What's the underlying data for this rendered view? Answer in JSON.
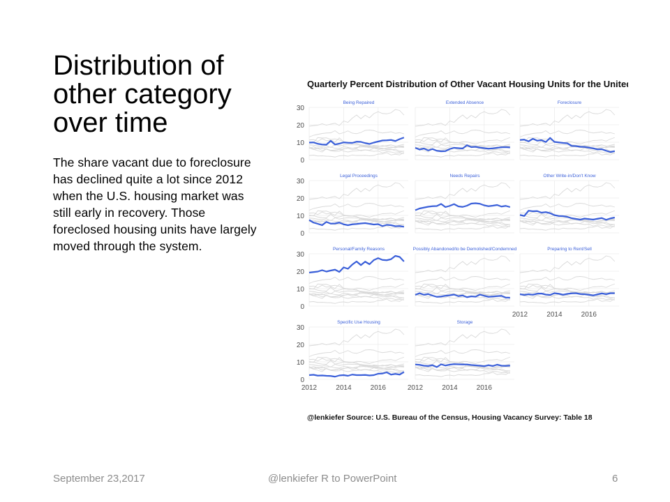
{
  "slide": {
    "title": "Distribution of other category over time",
    "body": "The share vacant due to foreclosure has declined quite a lot since 2012 when the U.S. housing market was still early in recovery. Those foreclosed housing units have largely moved through the system.",
    "footer_date": "September 23,2017",
    "footer_center": "@lenkiefer R to PowerPoint",
    "page_number": "6"
  },
  "chart_data": {
    "type": "line",
    "title": "Quarterly Percent Distribution of Other Vacant Housing Units for the United States",
    "caption": "@lenkiefer Source: U.S. Bureau of the Census, Housing Vacancy Survey: Table 18",
    "ylim": [
      0,
      30
    ],
    "y_ticks": [
      0,
      10,
      20,
      30
    ],
    "xlim": [
      2012,
      2017.75
    ],
    "x_ticks": [
      2012,
      2014,
      2016
    ],
    "x_tick_labels": [
      "2012",
      "2014",
      "2016"
    ],
    "highlight_color": "#3a5fd9",
    "background_line_color": "#d9d9d9",
    "x": [
      2012.0,
      2012.25,
      2012.5,
      2012.75,
      2013.0,
      2013.25,
      2013.5,
      2013.75,
      2014.0,
      2014.25,
      2014.5,
      2014.75,
      2015.0,
      2015.25,
      2015.5,
      2015.75,
      2016.0,
      2016.25,
      2016.5,
      2016.75,
      2017.0,
      2017.25,
      2017.5
    ],
    "series": [
      {
        "name": "Being Repaired",
        "values": [
          9.8,
          9.9,
          9.1,
          8.7,
          8.6,
          10.8,
          8.7,
          9.2,
          9.9,
          9.7,
          9.6,
          10.3,
          10.2,
          9.5,
          9.0,
          9.8,
          10.4,
          11.0,
          11.1,
          11.3,
          10.7,
          11.8,
          12.7
        ]
      },
      {
        "name": "Extended Absence",
        "values": [
          6.8,
          5.8,
          6.4,
          5.3,
          6.1,
          5.1,
          4.8,
          4.9,
          6.1,
          6.8,
          6.6,
          6.4,
          8.3,
          7.2,
          7.4,
          6.9,
          6.6,
          6.3,
          6.5,
          6.8,
          7.1,
          7.2,
          7.0
        ]
      },
      {
        "name": "Foreclosure",
        "values": [
          11.3,
          11.5,
          10.5,
          12.0,
          10.9,
          11.2,
          10.1,
          12.5,
          10.2,
          9.9,
          9.6,
          9.4,
          7.9,
          7.8,
          7.4,
          7.3,
          6.9,
          6.5,
          5.9,
          6.0,
          5.1,
          4.4,
          4.9
        ]
      },
      {
        "name": "Legal Proceedings",
        "values": [
          7.4,
          5.9,
          5.2,
          4.4,
          6.3,
          5.3,
          5.4,
          5.9,
          4.9,
          4.4,
          4.9,
          5.1,
          5.4,
          5.6,
          5.2,
          4.8,
          5.0,
          3.9,
          4.6,
          4.4,
          3.8,
          3.9,
          3.5
        ]
      },
      {
        "name": "Needs Repairs",
        "values": [
          13.0,
          14.0,
          14.5,
          15.0,
          15.3,
          15.4,
          16.6,
          14.8,
          15.5,
          16.5,
          15.2,
          14.9,
          15.6,
          16.8,
          17.0,
          16.7,
          15.8,
          15.3,
          15.6,
          16.0,
          15.1,
          15.5,
          14.8
        ]
      },
      {
        "name": "Other Write-in/Don't Know",
        "values": [
          10.3,
          9.7,
          12.7,
          12.4,
          12.5,
          11.6,
          11.9,
          11.3,
          10.2,
          9.7,
          9.6,
          9.2,
          8.4,
          8.0,
          7.6,
          8.2,
          7.9,
          7.6,
          8.1,
          8.5,
          7.5,
          8.3,
          8.8
        ]
      },
      {
        "name": "Personal/Family Reasons",
        "values": [
          19.2,
          19.5,
          19.8,
          20.6,
          19.8,
          20.4,
          20.9,
          19.6,
          22.2,
          21.4,
          23.8,
          25.6,
          23.5,
          25.5,
          24.0,
          26.4,
          27.5,
          26.5,
          26.3,
          26.9,
          28.8,
          28.2,
          25.6
        ]
      },
      {
        "name": "Possibly Abandoned/to be Demolished/Condemned",
        "values": [
          6.4,
          7.4,
          6.5,
          6.9,
          6.0,
          5.3,
          5.5,
          5.9,
          6.2,
          6.6,
          5.7,
          6.1,
          5.1,
          5.6,
          5.4,
          6.6,
          5.9,
          5.3,
          5.5,
          5.7,
          5.9,
          4.9,
          4.8
        ]
      },
      {
        "name": "Preparing to Rent/Sell",
        "values": [
          6.8,
          6.4,
          6.8,
          6.5,
          7.1,
          7.2,
          6.6,
          6.4,
          7.4,
          7.1,
          6.5,
          7.0,
          7.3,
          7.4,
          6.9,
          6.8,
          6.5,
          6.1,
          6.7,
          7.3,
          6.8,
          7.4,
          7.4
        ]
      },
      {
        "name": "Specific Use Housing",
        "values": [
          2.4,
          2.6,
          2.1,
          2.2,
          2.0,
          1.9,
          1.5,
          2.2,
          2.4,
          2.0,
          2.7,
          2.4,
          2.4,
          2.5,
          2.2,
          2.4,
          3.2,
          3.3,
          4.0,
          2.7,
          3.1,
          2.7,
          4.2
        ]
      },
      {
        "name": "Storage",
        "values": [
          8.5,
          8.3,
          7.8,
          7.6,
          8.1,
          7.0,
          8.6,
          7.9,
          8.4,
          8.7,
          8.6,
          8.5,
          8.5,
          8.2,
          8.0,
          7.8,
          7.5,
          8.1,
          7.6,
          8.4,
          7.8,
          7.7,
          7.9
        ]
      }
    ]
  }
}
